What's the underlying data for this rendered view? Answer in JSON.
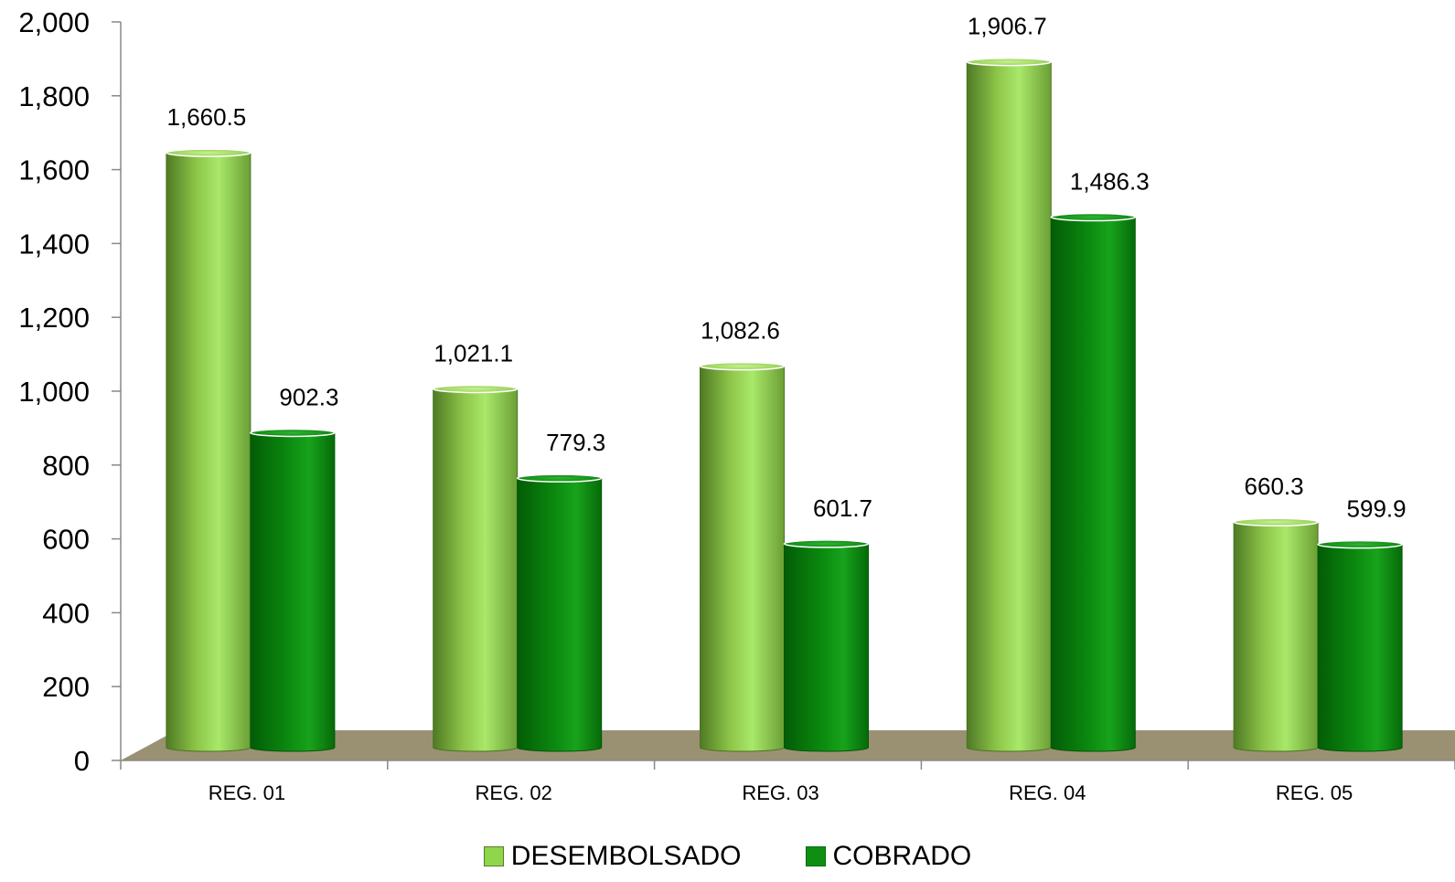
{
  "chart_data": {
    "type": "bar",
    "categories": [
      "REG. 01",
      "REG. 02",
      "REG. 03",
      "REG. 04",
      "REG. 05"
    ],
    "series": [
      {
        "name": "DESEMBOLSADO",
        "values": [
          1660.5,
          1021.1,
          1082.6,
          1906.7,
          660.3
        ],
        "labels": [
          "1,660.5",
          "1,021.1",
          "1,082.6",
          "1,906.7",
          "660.3"
        ],
        "color": "#8fd64a"
      },
      {
        "name": "COBRADO",
        "values": [
          902.3,
          779.3,
          601.7,
          1486.3,
          599.9
        ],
        "labels": [
          "902.3",
          "779.3",
          "601.7",
          "1,486.3",
          "599.9"
        ],
        "color": "#0f8f12"
      }
    ],
    "ylim": [
      0,
      2000
    ],
    "yticks": [
      0,
      200,
      400,
      600,
      800,
      1000,
      1200,
      1400,
      1600,
      1800,
      2000
    ],
    "ytick_labels": [
      "0",
      "200",
      "400",
      "600",
      "800",
      "1,000",
      "1,200",
      "1,400",
      "1,600",
      "1,800",
      "2,000"
    ],
    "legend_position": "bottom-center",
    "grid": false,
    "floor_color": "#9a9173"
  }
}
